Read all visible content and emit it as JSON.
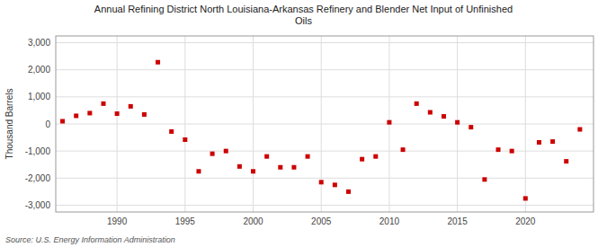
{
  "chart_data": {
    "type": "scatter",
    "title": "Annual Refining District North Louisiana-Arkansas Refinery and Blender Net Input of Unfinished\nOils",
    "ylabel": "Thousand Barrels",
    "source": "Source: U.S. Energy Information Administration",
    "color": "#cc0000",
    "marker": "square",
    "grid": true,
    "xlim": [
      1985.5,
      2025
    ],
    "ylim": [
      -3250,
      3250
    ],
    "xticks": [
      1990,
      1995,
      2000,
      2005,
      2010,
      2015,
      2020
    ],
    "yticks": [
      {
        "value": -3000,
        "label": "-3,000"
      },
      {
        "value": -2000,
        "label": "-2,000"
      },
      {
        "value": -1000,
        "label": "-1,000"
      },
      0,
      {
        "value": 1000,
        "label": "1,000"
      },
      {
        "value": 2000,
        "label": "2,000"
      },
      {
        "value": 3000,
        "label": "3,000"
      }
    ],
    "x": [
      1986,
      1987,
      1988,
      1989,
      1990,
      1991,
      1992,
      1993,
      1994,
      1995,
      1996,
      1997,
      1998,
      1999,
      2000,
      2001,
      2002,
      2003,
      2004,
      2005,
      2006,
      2007,
      2008,
      2009,
      2010,
      2011,
      2012,
      2013,
      2014,
      2015,
      2016,
      2017,
      2018,
      2019,
      2020,
      2021,
      2022,
      2023,
      2024
    ],
    "values": [
      100,
      300,
      400,
      750,
      380,
      650,
      350,
      2280,
      -280,
      -580,
      -1750,
      -1100,
      -1000,
      -1570,
      -1750,
      -1200,
      -1600,
      -1600,
      -1200,
      -2150,
      -2250,
      -2500,
      -1300,
      -1200,
      60,
      -950,
      750,
      430,
      280,
      60,
      -120,
      -2050,
      -950,
      -1000,
      -2750,
      -680,
      -650,
      -1380,
      -200
    ]
  }
}
